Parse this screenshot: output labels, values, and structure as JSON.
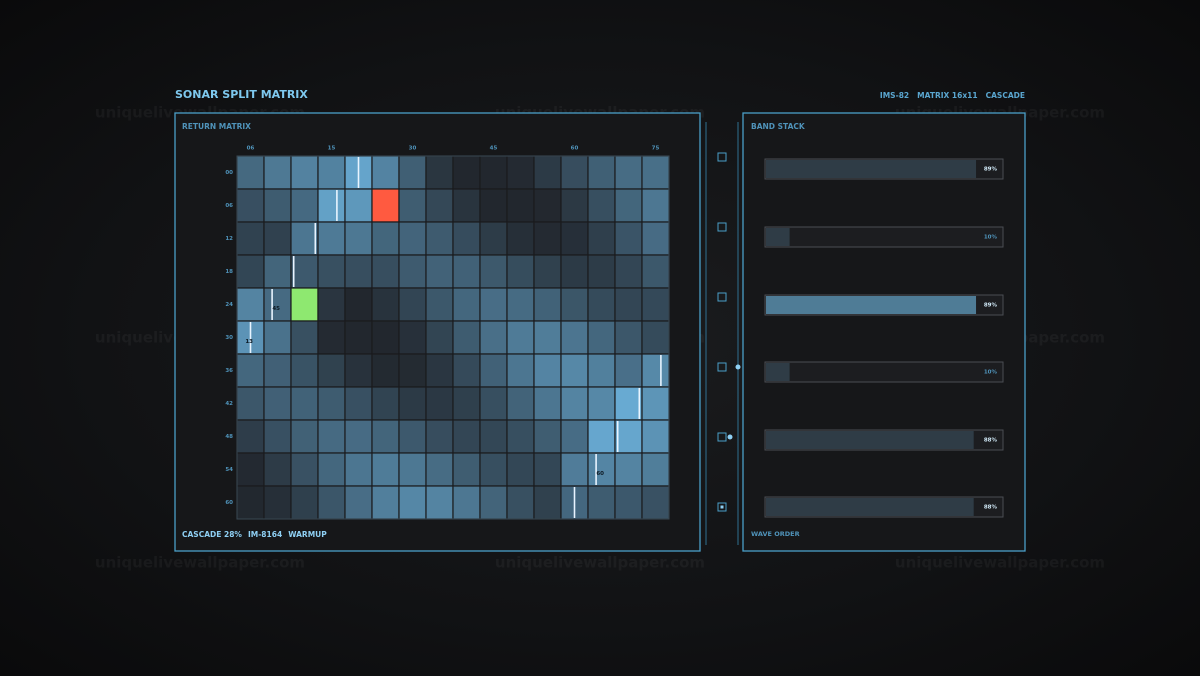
{
  "header": {
    "title": "SONAR SPLIT MATRIX",
    "meta": [
      "IMS-82",
      "MATRIX 16x11",
      "CASCADE"
    ]
  },
  "matrix": {
    "title": "RETURN MATRIX",
    "column_labels": [
      "06",
      "15",
      "30",
      "45",
      "60",
      "75"
    ],
    "row_labels": [
      "00",
      "06",
      "12",
      "18",
      "24",
      "30",
      "36",
      "42",
      "48",
      "54",
      "60"
    ],
    "cell_labels": [
      "45",
      "13",
      "60"
    ],
    "footer": [
      "CASCADE 28%",
      "IM-8164",
      "WARMUP"
    ]
  },
  "band_stack": {
    "title": "BAND STACK",
    "values": [
      89,
      10,
      89,
      10,
      88,
      88
    ],
    "value_labels": [
      "89%",
      "10%",
      "89%",
      "10%",
      "88%",
      "88%"
    ],
    "footer": "WAVE ORDER"
  },
  "watermark": "uniquelivewallpaper.com"
}
